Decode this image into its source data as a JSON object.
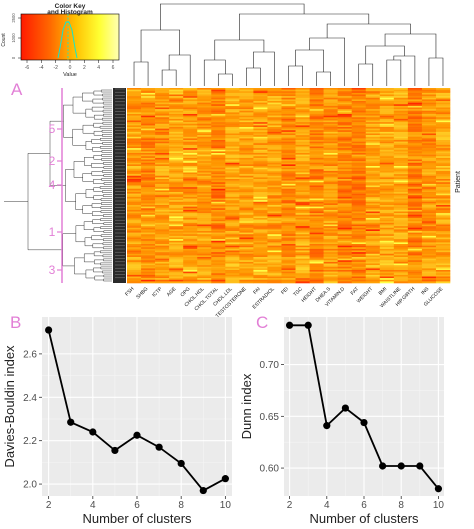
{
  "colors": {
    "accent_magenta": "#e27fd6",
    "heat_low": "#ff2a00",
    "heat_mid": "#ff9a00",
    "heat_high": "#ffff40",
    "key_high": "#12e5cf",
    "line": "#000000",
    "panel_bg": "#ebebeb",
    "grid": "#ffffff"
  },
  "color_key": {
    "title": "Color Key\nand Histogram",
    "title_line1": "Color Key",
    "title_line2": "and Histogram",
    "xlabel": "Value",
    "ylabel": "Count",
    "x_ticks": [
      "-6",
      "-4",
      "-2",
      "0",
      "2",
      "4",
      "6"
    ],
    "y_ticks": [
      "0",
      "1000",
      "2500"
    ]
  },
  "heatmap": {
    "panel_label": "A",
    "row_label": "Patient",
    "columns": [
      "FSH",
      "SHBG",
      "ICTP",
      "AGE",
      "OPG",
      "CHOL.HDL",
      "CHOL.TOTAL",
      "CHOL.LDL",
      "TESTOSTERONE",
      "FAI",
      "ESTRADIOL",
      "FEI",
      "TGC",
      "HEIGHT",
      "DHEA.S",
      "VITAMIN.D",
      "FAT",
      "WEIGHT",
      "BMI",
      "WAISTLINE",
      "HIP.GIRTH",
      "INS",
      "GLUCOSE"
    ],
    "cluster_labels": [
      "5",
      "2",
      "4",
      "1",
      "3"
    ]
  },
  "chart_data": [
    {
      "type": "line",
      "panel_label": "B",
      "title": "",
      "xlabel": "Number of clusters",
      "ylabel": "Davies-Bouldin index",
      "x": [
        2,
        3,
        4,
        5,
        6,
        7,
        8,
        9,
        10
      ],
      "y": [
        2.71,
        2.285,
        2.24,
        2.155,
        2.225,
        2.17,
        2.095,
        1.97,
        2.025
      ],
      "xlim": [
        1.7,
        10.3
      ],
      "ylim": [
        1.945,
        2.77
      ],
      "x_ticks": [
        2,
        4,
        6,
        8,
        10
      ],
      "y_ticks": [
        2.0,
        2.2,
        2.4,
        2.6
      ],
      "y_tick_labels": [
        "2.0",
        "2.2",
        "2.4",
        "2.6"
      ],
      "grid": true,
      "markers": true
    },
    {
      "type": "line",
      "panel_label": "C",
      "title": "",
      "xlabel": "Number of clusters",
      "ylabel": "Dunn index",
      "x": [
        2,
        3,
        4,
        5,
        6,
        7,
        8,
        9,
        10
      ],
      "y": [
        0.738,
        0.738,
        0.641,
        0.658,
        0.644,
        0.602,
        0.602,
        0.602,
        0.58
      ],
      "xlim": [
        1.7,
        10.3
      ],
      "ylim": [
        0.573,
        0.746
      ],
      "x_ticks": [
        2,
        4,
        6,
        8,
        10
      ],
      "y_ticks": [
        0.6,
        0.65,
        0.7
      ],
      "y_tick_labels": [
        "0.60",
        "0.65",
        "0.70"
      ],
      "grid": true,
      "markers": true
    }
  ]
}
